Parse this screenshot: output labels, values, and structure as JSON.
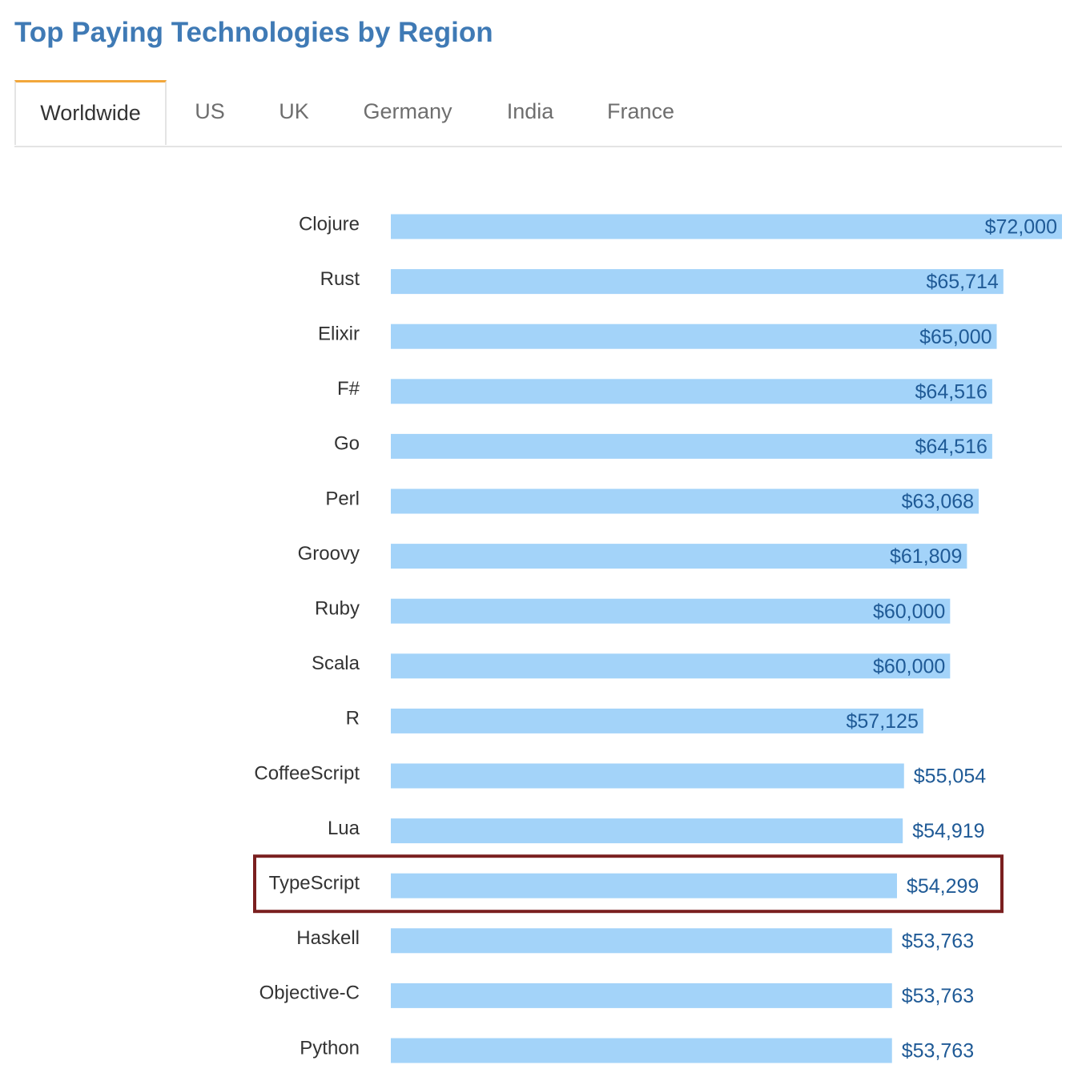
{
  "page": {
    "title": "Top Paying Technologies by Region"
  },
  "tabs": [
    {
      "label": "Worldwide",
      "active": true
    },
    {
      "label": "US",
      "active": false
    },
    {
      "label": "UK",
      "active": false
    },
    {
      "label": "Germany",
      "active": false
    },
    {
      "label": "India",
      "active": false
    },
    {
      "label": "France",
      "active": false
    }
  ],
  "colors": {
    "title": "#3f7ab5",
    "bar": "#a3d3f9",
    "value_label": "#1f5a96",
    "tab_accent": "#f2a73b",
    "highlight": "#7a1f1f"
  },
  "chart_data": {
    "type": "bar",
    "orientation": "horizontal",
    "categories": [
      "Clojure",
      "Rust",
      "Elixir",
      "F#",
      "Go",
      "Perl",
      "Groovy",
      "Ruby",
      "Scala",
      "R",
      "CoffeeScript",
      "Lua",
      "TypeScript",
      "Haskell",
      "Objective-C",
      "Python"
    ],
    "values": [
      72000,
      65714,
      65000,
      64516,
      64516,
      63068,
      61809,
      60000,
      60000,
      57125,
      55054,
      54919,
      54299,
      53763,
      53763,
      53763
    ],
    "value_labels": [
      "$72,000",
      "$65,714",
      "$65,000",
      "$64,516",
      "$64,516",
      "$63,068",
      "$61,809",
      "$60,000",
      "$60,000",
      "$57,125",
      "$55,054",
      "$54,919",
      "$54,299",
      "$53,763",
      "$53,763",
      "$53,763"
    ],
    "highlighted_category": "TypeScript",
    "xlim": [
      0,
      72000
    ],
    "grid": false,
    "legend": "none"
  }
}
